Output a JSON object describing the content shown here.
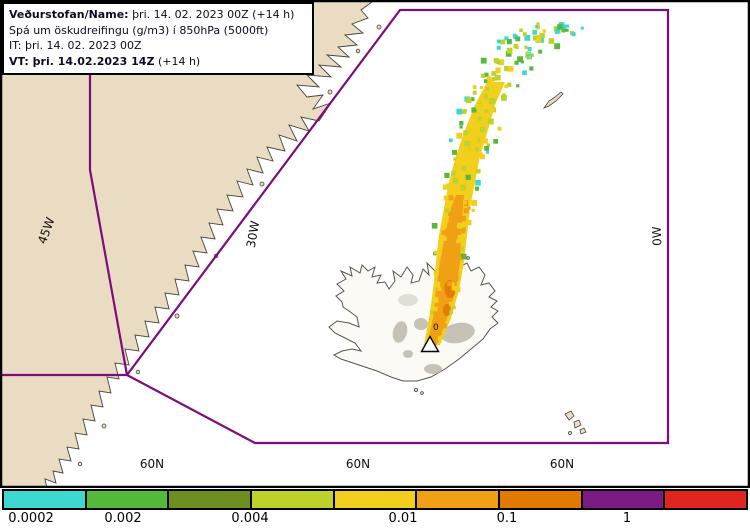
{
  "infobox": {
    "line1_label": "Veðurstofan/Name:",
    "line1_value": "þri. 14. 02. 2023 00Z (+14 h)",
    "line2": "Spá um öskudreifingu (g/m3) í 850hPa (5000ft)",
    "line3": "IT: þri. 14. 02. 2023 00Z",
    "line4_label": "VT: þri. 14.02.2023 14Z",
    "line4_value": "(+14 h)"
  },
  "map": {
    "labels": {
      "lon_45w": "45W",
      "lon_30w": "30W",
      "lon_0w": "0W",
      "lat_60n_left": "60N",
      "lat_60n_mid": "60N",
      "lat_60n_right": "60N"
    },
    "volcano_label": "0",
    "colors": {
      "land": "#e9dcc2",
      "iceland_land": "#fbfaf4",
      "glacier": "#c6c2b6",
      "ocean": "#ffffff",
      "fir_boundary": "#7c0d7c"
    }
  },
  "plume": {
    "colors": {
      "cyan": "#3fd8d0",
      "green": "#55b93c",
      "olive": "#6e8f1f",
      "yellowgreen": "#bdd32c",
      "yellow": "#f2cf1c",
      "orange": "#f0a015",
      "darkorange": "#e27a00",
      "purple": "#7c1b84",
      "red": "#e0251f"
    }
  },
  "colorbar": {
    "segment_colors": [
      "#3fd8d0",
      "#55b93c",
      "#6e8f1f",
      "#bdd32c",
      "#f2cf1c",
      "#f0a015",
      "#e27a00",
      "#7c1b84",
      "#e0251f"
    ],
    "tick_labels": [
      "0.0002",
      "0.002",
      "0.004",
      "0.01",
      "0.1",
      "1"
    ]
  }
}
